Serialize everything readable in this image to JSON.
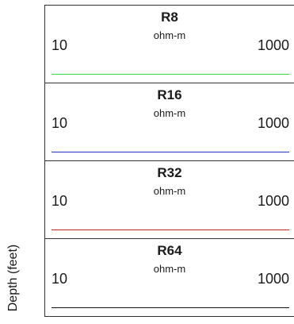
{
  "axis": {
    "ylabel": "Depth (feet)"
  },
  "chart_data": {
    "type": "line",
    "title": "",
    "ylabel": "Depth (feet)",
    "tracks": [
      {
        "name": "R8",
        "unit": "ohm-m",
        "scale": [
          10,
          1000
        ],
        "scale_min_label": "10",
        "scale_max_label": "1000",
        "color": "#33dd33"
      },
      {
        "name": "R16",
        "unit": "ohm-m",
        "scale": [
          10,
          1000
        ],
        "scale_min_label": "10",
        "scale_max_label": "1000",
        "color": "#2233cc"
      },
      {
        "name": "R32",
        "unit": "ohm-m",
        "scale": [
          10,
          1000
        ],
        "scale_min_label": "10",
        "scale_max_label": "1000",
        "color": "#cc2222"
      },
      {
        "name": "R64",
        "unit": "ohm-m",
        "scale": [
          10,
          1000
        ],
        "scale_min_label": "10",
        "scale_max_label": "1000",
        "color": "#111111"
      }
    ]
  }
}
